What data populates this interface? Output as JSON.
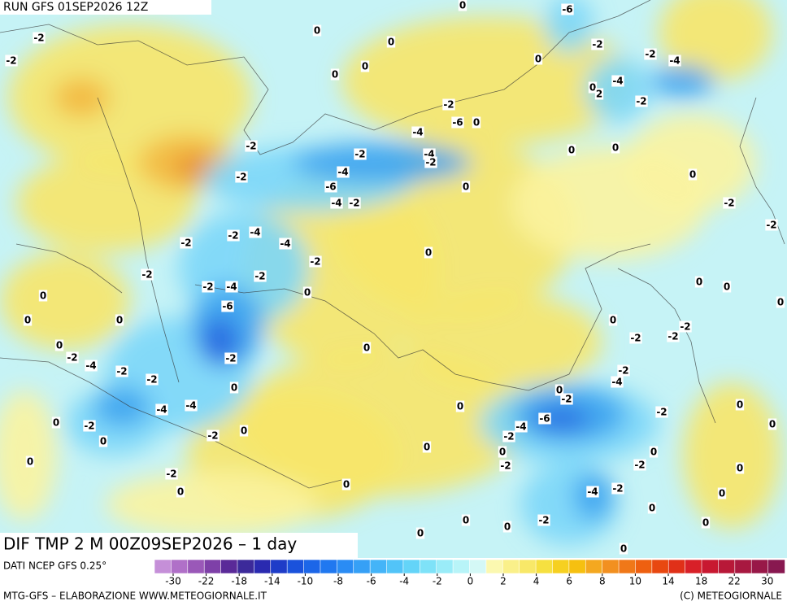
{
  "header": {
    "run": "RUN GFS 01SEP2026 12Z"
  },
  "map": {
    "title": "DIF TMP 2 M 00Z09SEP2026 – 1 day",
    "contour_labels": [
      -2,
      -2,
      0,
      0,
      0,
      -6,
      -2,
      0,
      -2,
      -4,
      0,
      0,
      -4,
      0,
      2,
      -2,
      -2,
      -6,
      0,
      -4,
      -2,
      -2,
      -4,
      -2,
      0,
      0,
      -4,
      -2,
      0,
      -6,
      0,
      -4,
      -2,
      -2,
      -2,
      -2,
      -4,
      -2,
      -4,
      0,
      -2,
      -2,
      -2,
      0,
      0,
      -2,
      -4,
      0,
      0,
      -6,
      0,
      0,
      0,
      0,
      -2,
      -2,
      -2,
      0,
      0,
      -2,
      -4,
      -2,
      -2,
      -2,
      -2,
      -4,
      0,
      0,
      -2,
      0,
      -4,
      -4,
      0,
      -2,
      0,
      -2,
      -6,
      -4,
      -2,
      0,
      0,
      0,
      -2,
      0,
      0,
      0,
      0,
      -2,
      -2,
      0,
      -2,
      0,
      0,
      -4,
      -2,
      0,
      0,
      -2,
      0,
      0,
      0,
      0,
      0
    ]
  },
  "legend": {
    "source": "DATI NCEP GFS 0.25°",
    "ticks": [
      -30,
      -22,
      -18,
      -14,
      -10,
      -8,
      -6,
      -4,
      -2,
      0,
      2,
      4,
      6,
      8,
      10,
      14,
      18,
      22,
      30
    ]
  },
  "footer": {
    "credit": "MTG-GFS – ELABORAZIONE WWW.METEOGIORNALE.IT",
    "copyright": "(C) METEOGIORNALE"
  }
}
